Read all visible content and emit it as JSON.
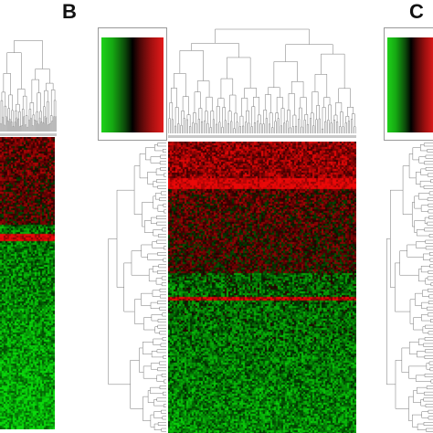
{
  "figure": {
    "panels": [
      {
        "id": "A",
        "label": ""
      },
      {
        "id": "B",
        "label": "B"
      },
      {
        "id": "C",
        "label": "C"
      }
    ]
  },
  "colors": {
    "low": "#1fd21a",
    "mid": "#000000",
    "high": "#e51a1a",
    "dendrogram_line": "#777777",
    "separator": "#c8c8c8"
  },
  "chart_data": [
    {
      "type": "heatmap",
      "panel": "A",
      "color_scale": [
        "green",
        "black",
        "red"
      ],
      "dendrograms": [
        "columns"
      ]
    },
    {
      "type": "heatmap",
      "panel": "B",
      "color_scale": [
        "green",
        "black",
        "red"
      ],
      "dendrograms": [
        "rows",
        "columns"
      ],
      "color_key": true
    },
    {
      "type": "heatmap",
      "panel": "C",
      "color_scale": [
        "green",
        "black",
        "red"
      ],
      "dendrograms": [
        "rows",
        "columns"
      ],
      "color_key": true
    }
  ]
}
